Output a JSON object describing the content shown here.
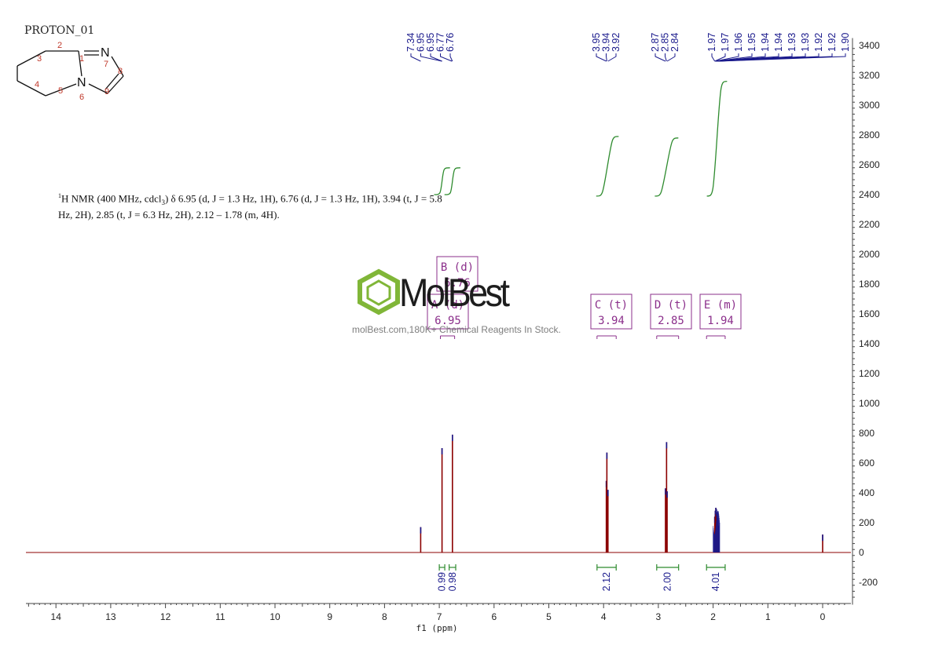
{
  "title": "PROTON_01",
  "structure": {
    "atoms": [
      {
        "num": "1",
        "symbol": ""
      },
      {
        "num": "2",
        "symbol": ""
      },
      {
        "num": "3",
        "symbol": ""
      },
      {
        "num": "4",
        "symbol": ""
      },
      {
        "num": "5",
        "symbol": ""
      },
      {
        "num": "6",
        "symbol": "N"
      },
      {
        "num": "7",
        "symbol": "N"
      },
      {
        "num": "8",
        "symbol": ""
      },
      {
        "num": "9",
        "symbol": ""
      }
    ]
  },
  "nmr_text": {
    "line1_sup": "1",
    "line1": "H NMR (400 MHz, cdcl",
    "line1_sub": "3",
    "line1_rest": ") δ 6.95 (d, J = 1.3 Hz, 1H), 6.76 (d, J = 1.3 Hz, 1H), 3.94 (t, J = 5.8",
    "line2": "Hz, 2H), 2.85 (t, J = 6.3 Hz, 2H), 2.12 – 1.78 (m, 4H)."
  },
  "watermark": {
    "brand": "MolBest",
    "tagline": "molBest.com,180K+ Chemical Reagents In Stock."
  },
  "colors": {
    "spectrum": "#8b0000",
    "spectrum_peak": "#1a1a8c",
    "integral": "#2e8b2e",
    "multiplet_box": "#8b2f8b",
    "peak_labels": "#1a1a8c",
    "watermark": "#7ab32e"
  },
  "chart_data": {
    "type": "line",
    "xlabel": "f1 (ppm)",
    "x_reversed": true,
    "xlim": [
      -0.5,
      14.6
    ],
    "ylim": [
      -350,
      3450
    ],
    "x_ticks": [
      14,
      13,
      12,
      11,
      10,
      9,
      8,
      7,
      6,
      5,
      4,
      3,
      2,
      1,
      0
    ],
    "y_ticks": [
      3400,
      3200,
      3000,
      2800,
      2600,
      2400,
      2200,
      2000,
      1800,
      1600,
      1400,
      1200,
      1000,
      800,
      600,
      400,
      200,
      0,
      -200
    ],
    "peaks": [
      {
        "ppm": 7.34,
        "intensity": 170
      },
      {
        "ppm": 6.95,
        "intensity": 700
      },
      {
        "ppm": 6.76,
        "intensity": 790
      },
      {
        "ppm": 3.95,
        "intensity": 480
      },
      {
        "ppm": 3.94,
        "intensity": 670
      },
      {
        "ppm": 3.92,
        "intensity": 420
      },
      {
        "ppm": 2.87,
        "intensity": 430
      },
      {
        "ppm": 2.85,
        "intensity": 740
      },
      {
        "ppm": 2.84,
        "intensity": 410
      },
      {
        "ppm": 1.97,
        "intensity": 240
      },
      {
        "ppm": 1.96,
        "intensity": 280
      },
      {
        "ppm": 1.95,
        "intensity": 300
      },
      {
        "ppm": 1.94,
        "intensity": 290
      },
      {
        "ppm": 1.93,
        "intensity": 270
      },
      {
        "ppm": 1.92,
        "intensity": 230
      },
      {
        "ppm": 1.9,
        "intensity": 180
      },
      {
        "ppm": 0.0,
        "intensity": 120
      }
    ],
    "peak_labels": [
      "7.34",
      "6.95",
      "6.95",
      "6.77",
      "6.76",
      "3.95",
      "3.94",
      "3.92",
      "2.87",
      "2.85",
      "2.84",
      "1.97",
      "1.97",
      "1.96",
      "1.95",
      "1.94",
      "1.94",
      "1.93",
      "1.93",
      "1.92",
      "1.92",
      "1.90"
    ],
    "integrals": [
      {
        "from": 7.0,
        "to": 6.9,
        "value": "0.99"
      },
      {
        "from": 6.82,
        "to": 6.7,
        "value": "0.98"
      },
      {
        "from": 4.12,
        "to": 3.77,
        "value": "2.12"
      },
      {
        "from": 3.03,
        "to": 2.63,
        "value": "2.00"
      },
      {
        "from": 2.12,
        "to": 1.78,
        "value": "4.01"
      }
    ],
    "integral_curves": [
      {
        "from": 6.98,
        "to": 6.92,
        "y_start": 2400,
        "y_end": 2580
      },
      {
        "from": 6.79,
        "to": 6.73,
        "y_start": 2400,
        "y_end": 2580
      },
      {
        "from": 4.02,
        "to": 3.84,
        "y_start": 2390,
        "y_end": 2790
      },
      {
        "from": 2.95,
        "to": 2.75,
        "y_start": 2390,
        "y_end": 2780
      },
      {
        "from": 2.0,
        "to": 1.86,
        "y_start": 2390,
        "y_end": 3160
      }
    ],
    "multiplets": [
      {
        "label": "B (d)",
        "shift": "6.76",
        "range": [
          6.98,
          6.72
        ]
      },
      {
        "label": "A (d)",
        "shift": "6.95",
        "range": [
          6.98,
          6.72
        ]
      },
      {
        "label": "C (t)",
        "shift": "3.94",
        "range": [
          4.12,
          3.77
        ]
      },
      {
        "label": "D (t)",
        "shift": "2.85",
        "range": [
          3.03,
          2.63
        ]
      },
      {
        "label": "E (m)",
        "shift": "1.94",
        "range": [
          2.12,
          1.78
        ]
      }
    ]
  }
}
